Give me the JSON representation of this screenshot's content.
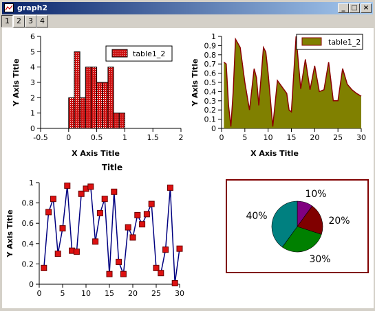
{
  "window": {
    "title": "graph2"
  },
  "tabs": [
    {
      "label": "1"
    },
    {
      "label": "2"
    },
    {
      "label": "3"
    },
    {
      "label": "4"
    }
  ],
  "controls": {
    "minimize": "_",
    "maximize": "□",
    "close": "×"
  },
  "colors": {
    "hist_fill": "#cc1111",
    "area_fill": "#808000",
    "area_line": "#8b0000",
    "line_color": "#000080",
    "marker": "#dd1111",
    "pie_border": "#800000"
  },
  "chart_data": [
    {
      "type": "bar",
      "title": "",
      "xlabel": "X Axis Title",
      "ylabel": "Y Axis Title",
      "xlim": [
        -0.5,
        2
      ],
      "ylim": [
        0,
        6
      ],
      "xticks": [
        "-0.5",
        "0",
        "0.5",
        "1",
        "1.5",
        "2"
      ],
      "yticks": [
        "0",
        "1",
        "2",
        "3",
        "4",
        "5",
        "6"
      ],
      "legend": "table1_2",
      "legend_position": "top-right",
      "bins": [
        {
          "x0": 0.0,
          "x1": 0.1,
          "v": 2
        },
        {
          "x0": 0.1,
          "x1": 0.2,
          "v": 5
        },
        {
          "x0": 0.2,
          "x1": 0.3,
          "v": 2
        },
        {
          "x0": 0.3,
          "x1": 0.4,
          "v": 4
        },
        {
          "x0": 0.4,
          "x1": 0.5,
          "v": 4
        },
        {
          "x0": 0.5,
          "x1": 0.6,
          "v": 3
        },
        {
          "x0": 0.6,
          "x1": 0.7,
          "v": 3
        },
        {
          "x0": 0.7,
          "x1": 0.8,
          "v": 4
        },
        {
          "x0": 0.8,
          "x1": 0.9,
          "v": 1
        },
        {
          "x0": 0.9,
          "x1": 1.0,
          "v": 1
        }
      ]
    },
    {
      "type": "area",
      "title": "",
      "xlabel": "X Axis Title",
      "ylabel": "Y Axis Title",
      "xlim": [
        0,
        30
      ],
      "ylim": [
        0,
        1
      ],
      "xticks": [
        "0",
        "5",
        "10",
        "15",
        "20",
        "25",
        "30"
      ],
      "yticks": [
        "0",
        "0.1",
        "0.2",
        "0.3",
        "0.4",
        "0.5",
        "0.6",
        "0.7",
        "0.8",
        "0.9",
        "1"
      ],
      "legend": "table1_2",
      "legend_position": "top-right",
      "x": [
        0.5,
        1,
        1.5,
        2,
        2.5,
        3,
        4,
        5,
        6,
        7,
        7.5,
        8,
        9,
        9.5,
        10,
        11,
        12,
        13,
        14,
        14.5,
        15,
        16,
        17,
        18,
        19,
        20,
        21,
        22,
        23,
        24,
        25,
        26,
        27,
        28,
        29,
        30
      ],
      "y": [
        0.72,
        0.7,
        0.25,
        0.02,
        0.4,
        0.97,
        0.88,
        0.5,
        0.2,
        0.65,
        0.55,
        0.25,
        0.88,
        0.83,
        0.6,
        0.02,
        0.52,
        0.45,
        0.38,
        0.2,
        0.18,
        1.0,
        0.43,
        0.75,
        0.42,
        0.68,
        0.4,
        0.42,
        0.72,
        0.3,
        0.3,
        0.65,
        0.48,
        0.42,
        0.38,
        0.35
      ]
    },
    {
      "type": "line",
      "title": "Title",
      "xlabel": "",
      "ylabel": "Y Axis Title",
      "xlim": [
        0,
        30
      ],
      "ylim": [
        0,
        1
      ],
      "xticks": [
        "0",
        "5",
        "10",
        "15",
        "20",
        "25",
        "30"
      ],
      "yticks": [
        "0",
        "0.2",
        "0.4",
        "0.6",
        "0.8",
        "1"
      ],
      "x": [
        1,
        2,
        3,
        4,
        5,
        6,
        7,
        8,
        9,
        10,
        11,
        12,
        13,
        14,
        15,
        16,
        17,
        18,
        19,
        20,
        21,
        22,
        23,
        24,
        25,
        26,
        27,
        28,
        29,
        30
      ],
      "y": [
        0.16,
        0.71,
        0.84,
        0.3,
        0.55,
        0.97,
        0.33,
        0.32,
        0.89,
        0.94,
        0.96,
        0.42,
        0.7,
        0.84,
        0.1,
        0.91,
        0.22,
        0.1,
        0.56,
        0.46,
        0.68,
        0.59,
        0.69,
        0.79,
        0.16,
        0.11,
        0.34,
        0.95,
        0.01,
        0.35
      ]
    },
    {
      "type": "pie",
      "slices": [
        {
          "value": 10,
          "label": "10%",
          "color": "#800080"
        },
        {
          "value": 20,
          "label": "20%",
          "color": "#800000"
        },
        {
          "value": 30,
          "label": "30%",
          "color": "#008000"
        },
        {
          "value": 40,
          "label": "40%",
          "color": "#008080"
        }
      ]
    }
  ]
}
